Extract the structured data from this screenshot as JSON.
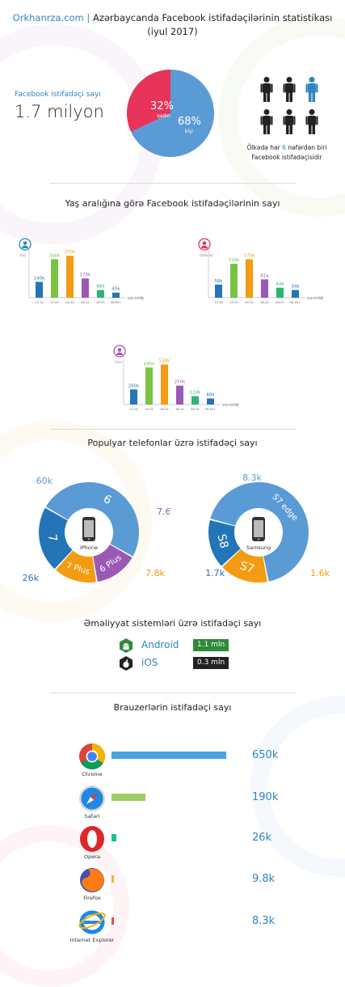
{
  "header": {
    "site": "Orkhanrza.com",
    "sep": "|",
    "title": "Azərbaycanda Facebook istifadəçilərinin statistikası",
    "subtitle": "(iyul 2017)"
  },
  "summary": {
    "label": "Facebook istifadəçi sayı",
    "value": "1.7 milyon",
    "caption_pre": "Ölkədə hər ",
    "caption_num": "6",
    "caption_post": " nəfərdən biri",
    "caption_line2": "Facebook istifadəçisidir",
    "person_highlight_index": 2,
    "person_count": 6
  },
  "gender_pie": {
    "type": "pie",
    "slices": [
      {
        "label": "qadın",
        "pct_label": "32%",
        "value": 32,
        "color": "#e8335a"
      },
      {
        "label": "kişi",
        "pct_label": "68%",
        "value": 68,
        "color": "#5b9bd5"
      }
    ]
  },
  "age_section": {
    "title": "Yaş aralığına görə Facebook istifadəçilərinin sayı"
  },
  "chart_data": [
    {
      "type": "bar",
      "group": "Kişi",
      "categories": [
        "13-18",
        "19-25",
        "26-35",
        "36-45",
        "46-55",
        "56-65+"
      ],
      "values": [
        140,
        340,
        370,
        170,
        68,
        45
      ],
      "value_labels": [
        "140k",
        "340k",
        "370k",
        "170k",
        "68k",
        "45k"
      ],
      "xlabel": "yaş aralığı",
      "ylim": [
        0,
        400
      ]
    },
    {
      "type": "bar",
      "group": "Qadınlar",
      "categories": [
        "13-18",
        "19-25",
        "26-35",
        "36-45",
        "46-55",
        "56-65+"
      ],
      "values": [
        58,
        150,
        170,
        81,
        44,
        34
      ],
      "value_labels": [
        "58k",
        "150k",
        "170k",
        "81k",
        "44k",
        "34k"
      ],
      "xlabel": "yaş aralığı",
      "ylim": [
        0,
        200
      ]
    },
    {
      "type": "bar",
      "group": "Cəm",
      "categories": [
        "13-18",
        "19-25",
        "26-35",
        "36-45",
        "46-55",
        "56-65+"
      ],
      "values": [
        200,
        490,
        530,
        250,
        110,
        80
      ],
      "value_labels": [
        "200k",
        "490k",
        "530k",
        "250k",
        "110k",
        "80k"
      ],
      "xlabel": "yaş aralığı",
      "ylim": [
        0,
        600
      ]
    },
    {
      "type": "pie",
      "group": "iPhone",
      "center_label": "IPhone",
      "slices": [
        {
          "name": "6",
          "value": 60,
          "label": "60k",
          "color": "#5b9bd5"
        },
        {
          "name": "6 Plus",
          "value": 7.6,
          "label": "7.6k",
          "color": "#9b59b6"
        },
        {
          "name": "7 Plus",
          "value": 7.8,
          "label": "7.8k",
          "color": "#f39c12"
        },
        {
          "name": "7",
          "value": 26,
          "label": "26k",
          "color": "#2475b8"
        }
      ]
    },
    {
      "type": "pie",
      "group": "Samsung",
      "center_label": "Samsung",
      "slices": [
        {
          "name": "S7 edge",
          "value": 8.3,
          "label": "8.3k",
          "color": "#5b9bd5"
        },
        {
          "name": "S7",
          "value": 1.6,
          "label": "1.6k",
          "color": "#f39c12"
        },
        {
          "name": "S8",
          "value": 1.7,
          "label": "1.7k",
          "color": "#2475b8"
        }
      ]
    },
    {
      "type": "bar",
      "group": "Brauzerlər",
      "categories": [
        "Chrome",
        "Safari",
        "Opera",
        "Firefox",
        "Internet Explorer"
      ],
      "values": [
        650,
        190,
        26,
        9.8,
        8.3
      ],
      "value_labels": [
        "650k",
        "190k",
        "26k",
        "9.8k",
        "8.3k"
      ],
      "colors": [
        "#4aa3df",
        "#9ccc65",
        "#1abc9c",
        "#f5b041",
        "#e74c3c"
      ]
    }
  ],
  "phones_section": {
    "title": "Populyar telefonlar üzrə istifadəçi sayı"
  },
  "os_section": {
    "title": "Əməliyyat sistemləri üzrə istifadəçi sayı",
    "items": [
      {
        "name": "Android",
        "value": "1.1 mln",
        "color": "#2e8b3a"
      },
      {
        "name": "iOS",
        "value": "0.3 mln",
        "color": "#222222"
      }
    ]
  },
  "browsers_section": {
    "title": "Brauzerlərin istifadəçi sayı"
  },
  "colors": {
    "blue": "#2475b8",
    "green": "#7cc242",
    "orange": "#f39c12",
    "purple": "#9b59b6",
    "accent": "#2e86c1"
  },
  "icons": [
    "male-person-icon",
    "female-avatar-icon",
    "couple-icon",
    "iphone-icon",
    "samsung-phone-icon",
    "android-icon",
    "apple-icon",
    "chrome-icon",
    "safari-icon",
    "opera-icon",
    "firefox-icon",
    "ie-icon"
  ]
}
